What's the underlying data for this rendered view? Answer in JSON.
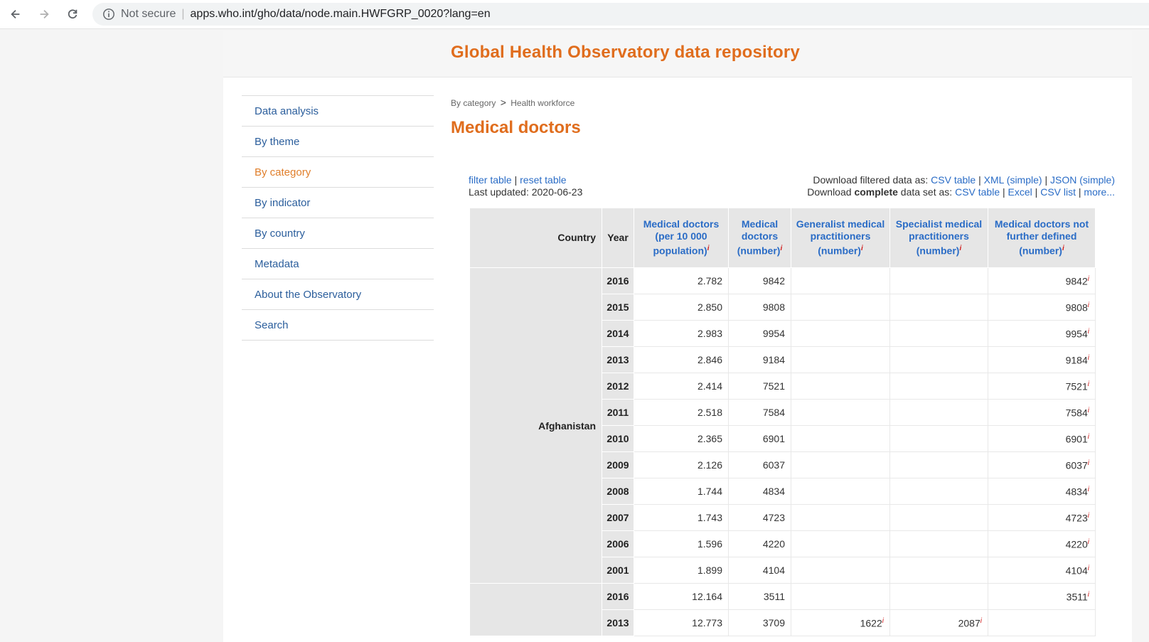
{
  "browser": {
    "security_label": "Not secure",
    "url": "apps.who.int/gho/data/node.main.HWFGRP_0020?lang=en"
  },
  "site": {
    "title": "Global Health Observatory data repository"
  },
  "sidebar": {
    "items": [
      {
        "label": "Data analysis",
        "active": false
      },
      {
        "label": "By theme",
        "active": false
      },
      {
        "label": "By category",
        "active": true
      },
      {
        "label": "By indicator",
        "active": false
      },
      {
        "label": "By country",
        "active": false
      },
      {
        "label": "Metadata",
        "active": false
      },
      {
        "label": "About the Observatory",
        "active": false
      },
      {
        "label": "Search",
        "active": false
      }
    ]
  },
  "breadcrumb": {
    "item1": "By category",
    "separator": ">",
    "item2": "Health workforce"
  },
  "page_title": "Medical doctors",
  "tools": {
    "filter": "filter table",
    "pipe": "|",
    "reset": "reset table",
    "last_updated": "Last updated: 2020-06-23",
    "download_filtered_prefix": "Download filtered data as:",
    "csv_table": "CSV table",
    "xml_simple": "XML (simple)",
    "json_simple": "JSON (simple)",
    "download_complete_prefix": "Download",
    "complete_word": "complete",
    "download_complete_suffix": "data set as:",
    "excel": "Excel",
    "csv_list": "CSV list",
    "more": "more..."
  },
  "table": {
    "headers": {
      "country": "Country",
      "year": "Year",
      "per10000": "Medical doctors (per 10 000 population)",
      "number": "Medical doctors (number)",
      "generalist": "Generalist medical practitioners (number)",
      "specialist": "Specialist medical practitioners (number)",
      "not_defined": "Medical doctors not further defined (number)",
      "info_mark": "i"
    },
    "groups": [
      {
        "country": "Afghanistan",
        "rows": [
          {
            "year": "2016",
            "per10000": "2.782",
            "number": "9842",
            "generalist": "",
            "specialist": "",
            "not_defined": "9842"
          },
          {
            "year": "2015",
            "per10000": "2.850",
            "number": "9808",
            "generalist": "",
            "specialist": "",
            "not_defined": "9808"
          },
          {
            "year": "2014",
            "per10000": "2.983",
            "number": "9954",
            "generalist": "",
            "specialist": "",
            "not_defined": "9954"
          },
          {
            "year": "2013",
            "per10000": "2.846",
            "number": "9184",
            "generalist": "",
            "specialist": "",
            "not_defined": "9184"
          },
          {
            "year": "2012",
            "per10000": "2.414",
            "number": "7521",
            "generalist": "",
            "specialist": "",
            "not_defined": "7521"
          },
          {
            "year": "2011",
            "per10000": "2.518",
            "number": "7584",
            "generalist": "",
            "specialist": "",
            "not_defined": "7584"
          },
          {
            "year": "2010",
            "per10000": "2.365",
            "number": "6901",
            "generalist": "",
            "specialist": "",
            "not_defined": "6901"
          },
          {
            "year": "2009",
            "per10000": "2.126",
            "number": "6037",
            "generalist": "",
            "specialist": "",
            "not_defined": "6037"
          },
          {
            "year": "2008",
            "per10000": "1.744",
            "number": "4834",
            "generalist": "",
            "specialist": "",
            "not_defined": "4834"
          },
          {
            "year": "2007",
            "per10000": "1.743",
            "number": "4723",
            "generalist": "",
            "specialist": "",
            "not_defined": "4723"
          },
          {
            "year": "2006",
            "per10000": "1.596",
            "number": "4220",
            "generalist": "",
            "specialist": "",
            "not_defined": "4220"
          },
          {
            "year": "2001",
            "per10000": "1.899",
            "number": "4104",
            "generalist": "",
            "specialist": "",
            "not_defined": "4104"
          }
        ]
      },
      {
        "country": "",
        "rows": [
          {
            "year": "2016",
            "per10000": "12.164",
            "number": "3511",
            "generalist": "",
            "specialist": "",
            "not_defined": "3511"
          },
          {
            "year": "2013",
            "per10000": "12.773",
            "number": "3709",
            "generalist": "1622",
            "specialist": "2087",
            "not_defined": ""
          }
        ]
      }
    ]
  }
}
